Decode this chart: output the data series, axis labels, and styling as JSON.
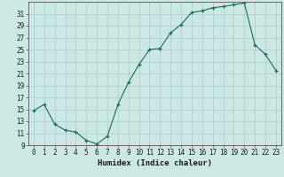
{
  "x": [
    0,
    1,
    2,
    3,
    4,
    5,
    6,
    7,
    8,
    9,
    10,
    11,
    12,
    13,
    14,
    15,
    16,
    17,
    18,
    19,
    20,
    21,
    22,
    23
  ],
  "y": [
    14.8,
    15.8,
    12.5,
    11.5,
    11.2,
    9.8,
    9.2,
    10.5,
    15.8,
    19.5,
    22.5,
    25.0,
    25.2,
    27.8,
    29.2,
    31.2,
    31.5,
    32.0,
    32.2,
    32.5,
    32.8,
    25.8,
    24.2,
    21.5
  ],
  "line_color": "#1a6b5a",
  "marker": "+",
  "bg_color": "#cce8e4",
  "grid_color": "#aacccc",
  "xlabel": "Humidex (Indice chaleur)",
  "ylim": [
    9,
    33
  ],
  "xlim": [
    -0.5,
    23.5
  ],
  "yticks": [
    9,
    11,
    13,
    15,
    17,
    19,
    21,
    23,
    25,
    27,
    29,
    31
  ],
  "xticks": [
    0,
    1,
    2,
    3,
    4,
    5,
    6,
    7,
    8,
    9,
    10,
    11,
    12,
    13,
    14,
    15,
    16,
    17,
    18,
    19,
    20,
    21,
    22,
    23
  ],
  "tick_fontsize": 5.5,
  "label_fontsize": 6.5
}
